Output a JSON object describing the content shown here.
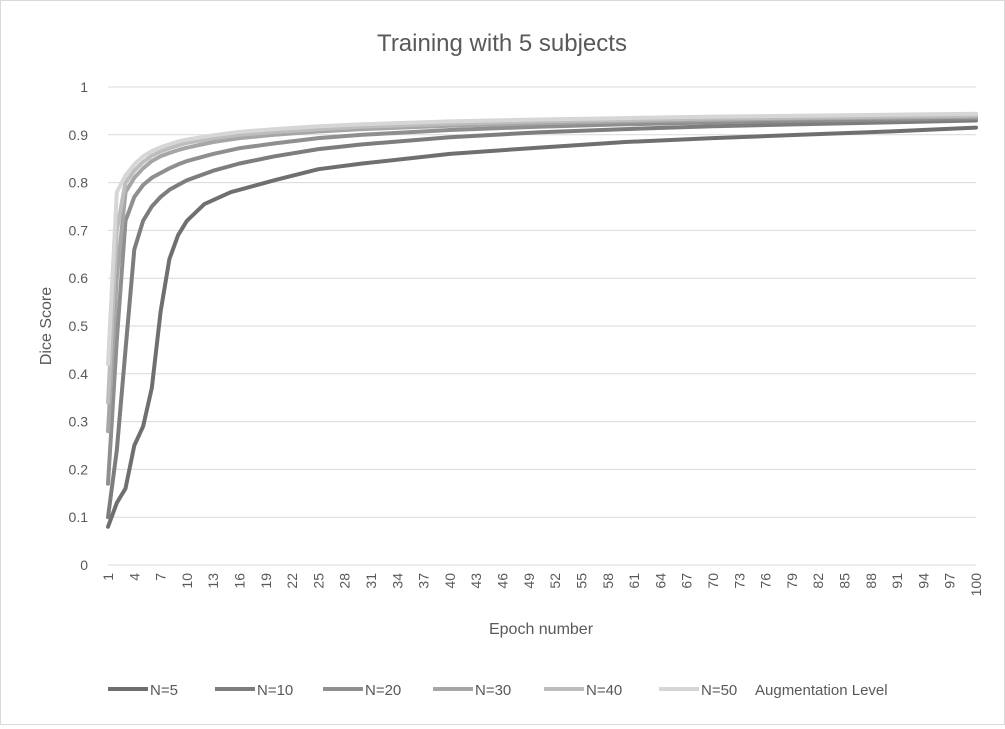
{
  "chart_data": {
    "type": "line",
    "title": "Training with 5 subjects",
    "xlabel": "Epoch number",
    "ylabel": "Dice Score",
    "ylim": [
      0,
      1
    ],
    "yticks": [
      0,
      0.1,
      0.2,
      0.3,
      0.4,
      0.5,
      0.6,
      0.7,
      0.8,
      0.9,
      1
    ],
    "ytick_labels": [
      "0",
      "0.1",
      "0.2",
      "0.3",
      "0.4",
      "0.5",
      "0.6",
      "0.7",
      "0.8",
      "0.9",
      "1"
    ],
    "xlim": [
      1,
      100
    ],
    "xticks": [
      1,
      4,
      7,
      10,
      13,
      16,
      19,
      22,
      25,
      28,
      31,
      34,
      37,
      40,
      43,
      46,
      49,
      52,
      55,
      58,
      61,
      64,
      67,
      70,
      73,
      76,
      79,
      82,
      85,
      88,
      91,
      94,
      97,
      100
    ],
    "grid": "horizontal",
    "legend_position": "bottom",
    "legend_suffix": "Augmentation Level",
    "series": [
      {
        "name": "N=5",
        "color": "#6f6f6f",
        "points": [
          [
            1,
            0.08
          ],
          [
            2,
            0.13
          ],
          [
            3,
            0.16
          ],
          [
            4,
            0.25
          ],
          [
            5,
            0.29
          ],
          [
            6,
            0.37
          ],
          [
            7,
            0.53
          ],
          [
            8,
            0.64
          ],
          [
            9,
            0.69
          ],
          [
            10,
            0.72
          ],
          [
            12,
            0.755
          ],
          [
            15,
            0.78
          ],
          [
            20,
            0.805
          ],
          [
            25,
            0.828
          ],
          [
            30,
            0.84
          ],
          [
            40,
            0.86
          ],
          [
            50,
            0.873
          ],
          [
            60,
            0.885
          ],
          [
            70,
            0.893
          ],
          [
            80,
            0.9
          ],
          [
            90,
            0.907
          ],
          [
            100,
            0.915
          ]
        ]
      },
      {
        "name": "N=10",
        "color": "#7d7d7d",
        "points": [
          [
            1,
            0.1
          ],
          [
            2,
            0.24
          ],
          [
            3,
            0.45
          ],
          [
            4,
            0.66
          ],
          [
            5,
            0.72
          ],
          [
            6,
            0.75
          ],
          [
            7,
            0.77
          ],
          [
            8,
            0.785
          ],
          [
            9,
            0.795
          ],
          [
            10,
            0.805
          ],
          [
            13,
            0.825
          ],
          [
            16,
            0.84
          ],
          [
            20,
            0.855
          ],
          [
            25,
            0.87
          ],
          [
            30,
            0.88
          ],
          [
            40,
            0.895
          ],
          [
            50,
            0.905
          ],
          [
            60,
            0.912
          ],
          [
            70,
            0.918
          ],
          [
            80,
            0.922
          ],
          [
            90,
            0.926
          ],
          [
            100,
            0.93
          ]
        ]
      },
      {
        "name": "N=20",
        "color": "#8f8f8f",
        "points": [
          [
            1,
            0.17
          ],
          [
            2,
            0.47
          ],
          [
            3,
            0.72
          ],
          [
            4,
            0.77
          ],
          [
            5,
            0.795
          ],
          [
            6,
            0.81
          ],
          [
            7,
            0.82
          ],
          [
            8,
            0.83
          ],
          [
            9,
            0.838
          ],
          [
            10,
            0.845
          ],
          [
            13,
            0.86
          ],
          [
            16,
            0.872
          ],
          [
            20,
            0.882
          ],
          [
            25,
            0.893
          ],
          [
            30,
            0.9
          ],
          [
            40,
            0.91
          ],
          [
            50,
            0.917
          ],
          [
            60,
            0.922
          ],
          [
            70,
            0.926
          ],
          [
            80,
            0.929
          ],
          [
            90,
            0.932
          ],
          [
            100,
            0.935
          ]
        ]
      },
      {
        "name": "N=30",
        "color": "#a6a6a6",
        "points": [
          [
            1,
            0.28
          ],
          [
            2,
            0.6
          ],
          [
            3,
            0.78
          ],
          [
            4,
            0.81
          ],
          [
            5,
            0.83
          ],
          [
            6,
            0.845
          ],
          [
            7,
            0.855
          ],
          [
            8,
            0.862
          ],
          [
            9,
            0.868
          ],
          [
            10,
            0.873
          ],
          [
            13,
            0.885
          ],
          [
            16,
            0.893
          ],
          [
            20,
            0.9
          ],
          [
            25,
            0.907
          ],
          [
            30,
            0.912
          ],
          [
            40,
            0.919
          ],
          [
            50,
            0.924
          ],
          [
            60,
            0.928
          ],
          [
            70,
            0.931
          ],
          [
            80,
            0.934
          ],
          [
            90,
            0.936
          ],
          [
            100,
            0.938
          ]
        ]
      },
      {
        "name": "N=40",
        "color": "#bdbdbd",
        "points": [
          [
            1,
            0.34
          ],
          [
            2,
            0.7
          ],
          [
            3,
            0.8
          ],
          [
            4,
            0.825
          ],
          [
            5,
            0.843
          ],
          [
            6,
            0.856
          ],
          [
            7,
            0.865
          ],
          [
            8,
            0.872
          ],
          [
            9,
            0.878
          ],
          [
            10,
            0.883
          ],
          [
            13,
            0.893
          ],
          [
            16,
            0.9
          ],
          [
            20,
            0.906
          ],
          [
            25,
            0.912
          ],
          [
            30,
            0.917
          ],
          [
            40,
            0.923
          ],
          [
            50,
            0.928
          ],
          [
            60,
            0.931
          ],
          [
            70,
            0.934
          ],
          [
            80,
            0.936
          ],
          [
            90,
            0.938
          ],
          [
            100,
            0.94
          ]
        ]
      },
      {
        "name": "N=50",
        "color": "#d6d6d6",
        "points": [
          [
            1,
            0.42
          ],
          [
            2,
            0.78
          ],
          [
            3,
            0.815
          ],
          [
            4,
            0.838
          ],
          [
            5,
            0.855
          ],
          [
            6,
            0.866
          ],
          [
            7,
            0.874
          ],
          [
            8,
            0.88
          ],
          [
            9,
            0.886
          ],
          [
            10,
            0.89
          ],
          [
            13,
            0.899
          ],
          [
            16,
            0.906
          ],
          [
            20,
            0.912
          ],
          [
            25,
            0.918
          ],
          [
            30,
            0.922
          ],
          [
            40,
            0.928
          ],
          [
            50,
            0.932
          ],
          [
            60,
            0.935
          ],
          [
            70,
            0.938
          ],
          [
            80,
            0.94
          ],
          [
            90,
            0.942
          ],
          [
            100,
            0.944
          ]
        ]
      }
    ]
  }
}
